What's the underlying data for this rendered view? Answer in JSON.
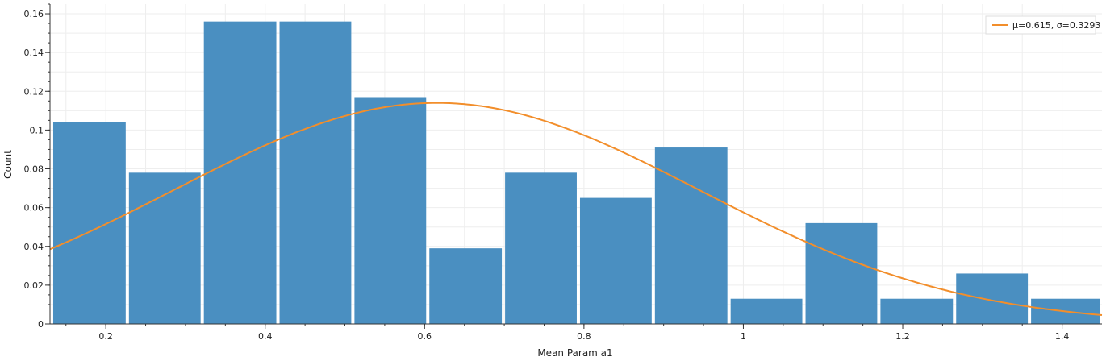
{
  "chart_data": {
    "type": "bar",
    "title": "",
    "xlabel": "Mean Param a1",
    "ylabel": "Count",
    "xlim": [
      0.13,
      1.45
    ],
    "ylim": [
      0,
      0.165
    ],
    "grid": true,
    "legend_position": "top-right",
    "bars": [
      {
        "x0": 0.132,
        "x1": 0.227,
        "value": 0.104
      },
      {
        "x0": 0.227,
        "x1": 0.321,
        "value": 0.078
      },
      {
        "x0": 0.321,
        "x1": 0.416,
        "value": 0.156
      },
      {
        "x0": 0.416,
        "x1": 0.51,
        "value": 0.156
      },
      {
        "x0": 0.51,
        "x1": 0.604,
        "value": 0.117
      },
      {
        "x0": 0.604,
        "x1": 0.699,
        "value": 0.039
      },
      {
        "x0": 0.699,
        "x1": 0.793,
        "value": 0.078
      },
      {
        "x0": 0.793,
        "x1": 0.887,
        "value": 0.065
      },
      {
        "x0": 0.887,
        "x1": 0.982,
        "value": 0.091
      },
      {
        "x0": 0.982,
        "x1": 1.076,
        "value": 0.013
      },
      {
        "x0": 1.076,
        "x1": 1.17,
        "value": 0.052
      },
      {
        "x0": 1.17,
        "x1": 1.265,
        "value": 0.013
      },
      {
        "x0": 1.265,
        "x1": 1.359,
        "value": 0.026
      },
      {
        "x0": 1.359,
        "x1": 1.453,
        "value": 0.013
      }
    ],
    "x_ticks": [
      0.2,
      0.4,
      0.6,
      0.8,
      1,
      1.2,
      1.4
    ],
    "x_tick_labels": [
      "0.2",
      "0.4",
      "0.6",
      "0.8",
      "1",
      "1.2",
      "1.4"
    ],
    "y_ticks": [
      0,
      0.02,
      0.04,
      0.06,
      0.08,
      0.1,
      0.12,
      0.14,
      0.16
    ],
    "y_tick_labels": [
      "0",
      "0.02",
      "0.04",
      "0.06",
      "0.08",
      "0.1",
      "0.12",
      "0.14",
      "0.16"
    ],
    "bar_color": "#4a8fc1",
    "curve": {
      "name": "μ=0.615, σ=0.3293",
      "mu": 0.615,
      "sigma": 0.3293,
      "peak": 0.114,
      "color": "#f28e2b"
    }
  }
}
